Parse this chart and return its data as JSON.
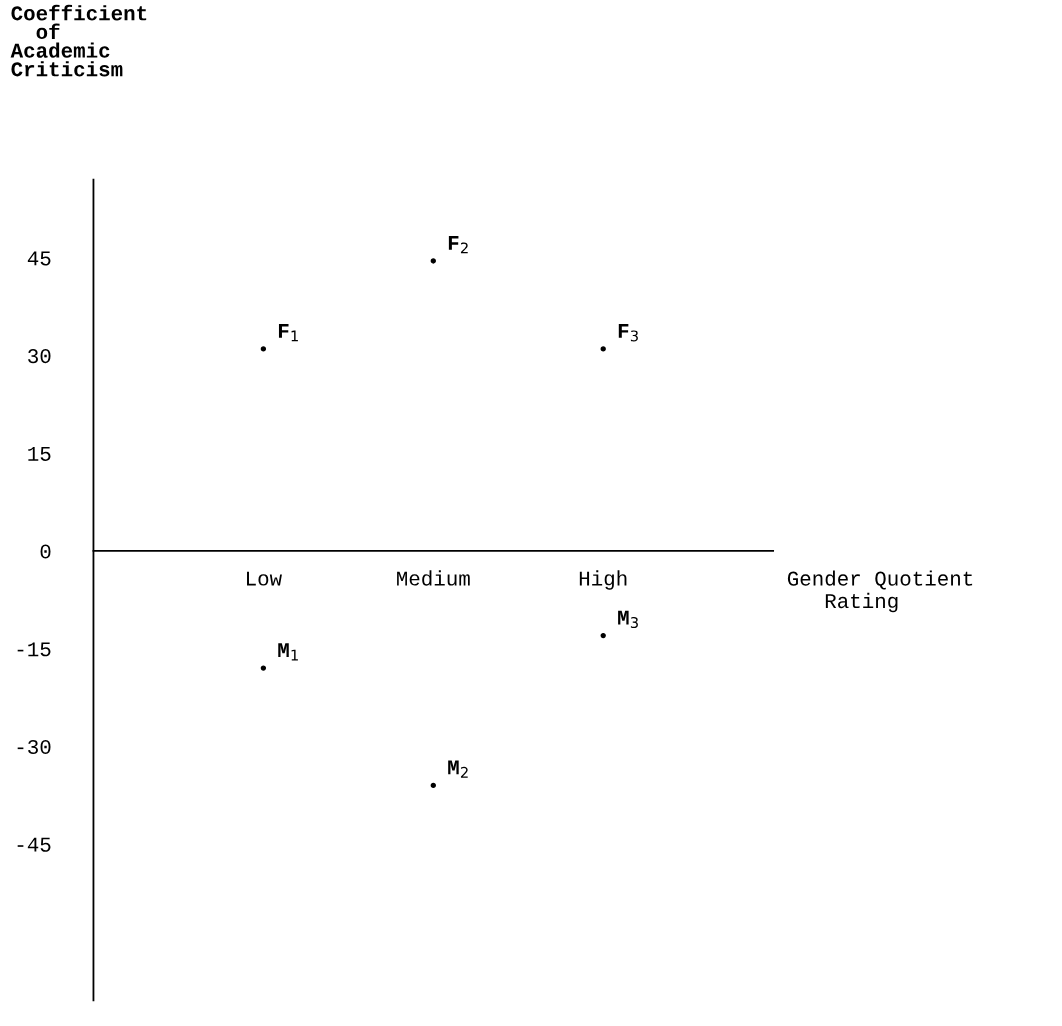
{
  "chart_data": {
    "type": "scatter",
    "ylabel": "Coefficient\n  of\nAcademic\nCriticism",
    "xlabel": "Gender Quotient\n   Rating",
    "categories": [
      "Low",
      "Medium",
      "High"
    ],
    "series": [
      {
        "color": "#000000",
        "values": [
          31,
          44.5,
          31
        ]
      },
      {
        "color": "#000000",
        "values": [
          -18,
          -36,
          -13
        ]
      }
    ],
    "marker": "circle",
    "ylim": [
      -69,
      57
    ],
    "yticks": [
      -45,
      -30,
      -15,
      0,
      15,
      30,
      45
    ],
    "grid": false,
    "annotations": [
      {
        "text": "F$_{1}$",
        "x": "Low",
        "y": 31
      },
      {
        "text": "F$_{2}$",
        "x": "Medium",
        "y": 44.5
      },
      {
        "text": "F$_{3}$",
        "x": "High",
        "y": 31
      },
      {
        "text": "M$_{1}$",
        "x": "Low",
        "y": -18
      },
      {
        "text": "M$_{2}$",
        "x": "Medium",
        "y": -36
      },
      {
        "text": "M$_{3}$",
        "x": "High",
        "y": -13
      }
    ]
  }
}
